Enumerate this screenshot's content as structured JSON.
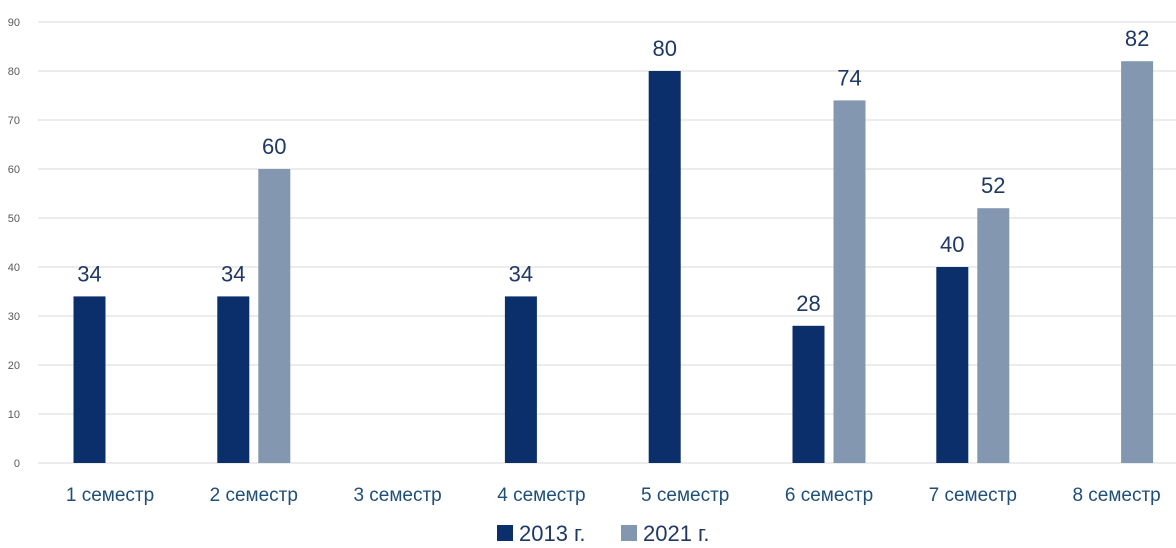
{
  "chart_data": {
    "type": "bar",
    "title": "",
    "xlabel": "",
    "ylabel": "",
    "ylim": [
      0,
      90
    ],
    "yticks": [
      0,
      10,
      20,
      30,
      40,
      50,
      60,
      70,
      80,
      90
    ],
    "grid": true,
    "legend_position": "bottom",
    "categories": [
      "1 семестр",
      "2 семестр",
      "3 семестр",
      "4 семестр",
      "5 семестр",
      "6 семестр",
      "7 семестр",
      "8 семестр"
    ],
    "series": [
      {
        "name": "2013 г.",
        "color": "#0b2f6b",
        "values": [
          34,
          34,
          null,
          34,
          80,
          28,
          40,
          null
        ]
      },
      {
        "name": "2021 г.",
        "color": "#8497b0",
        "values": [
          null,
          60,
          null,
          null,
          null,
          74,
          52,
          82
        ]
      }
    ]
  }
}
